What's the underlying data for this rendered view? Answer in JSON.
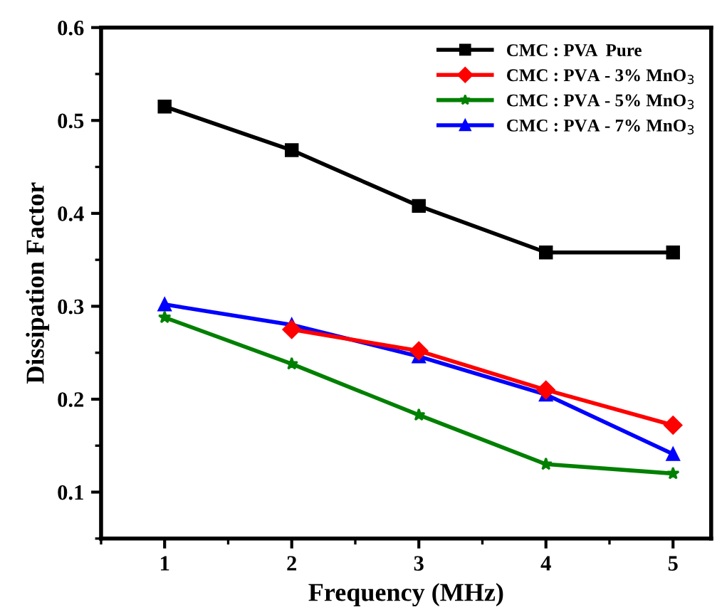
{
  "chart_data": {
    "type": "line",
    "xlabel": "Frequency (MHz)",
    "ylabel": "Dissipation Factor",
    "x": [
      1,
      2,
      3,
      4,
      5
    ],
    "xlim": [
      0.5,
      5.3
    ],
    "xticks": [
      1,
      2,
      3,
      4,
      5
    ],
    "ylim": [
      0.05,
      0.6
    ],
    "yticks": [
      0.1,
      0.2,
      0.3,
      0.4,
      0.5,
      0.6
    ],
    "grid": false,
    "legend": "top right",
    "line_style": "solid",
    "series": [
      {
        "name": "CMC : PVA  Pure",
        "color": "#000000",
        "marker": "square",
        "values": [
          0.515,
          0.468,
          0.408,
          0.358,
          0.358
        ]
      },
      {
        "name": "CMC : PVA - 3% MnO$_{3}$",
        "color": "#ff0000",
        "marker": "diamond",
        "values": [
          null,
          0.275,
          0.252,
          0.21,
          0.172
        ]
      },
      {
        "name": "CMC : PVA - 5% MnO$_{3}$",
        "color": "#008000",
        "marker": "star",
        "values": [
          0.288,
          0.238,
          0.183,
          0.13,
          0.12
        ]
      },
      {
        "name": "CMC : PVA - 7% MnO$_{3}$",
        "color": "#0000ff",
        "marker": "triangle",
        "values": [
          0.302,
          0.28,
          0.246,
          0.205,
          0.141
        ]
      }
    ]
  }
}
